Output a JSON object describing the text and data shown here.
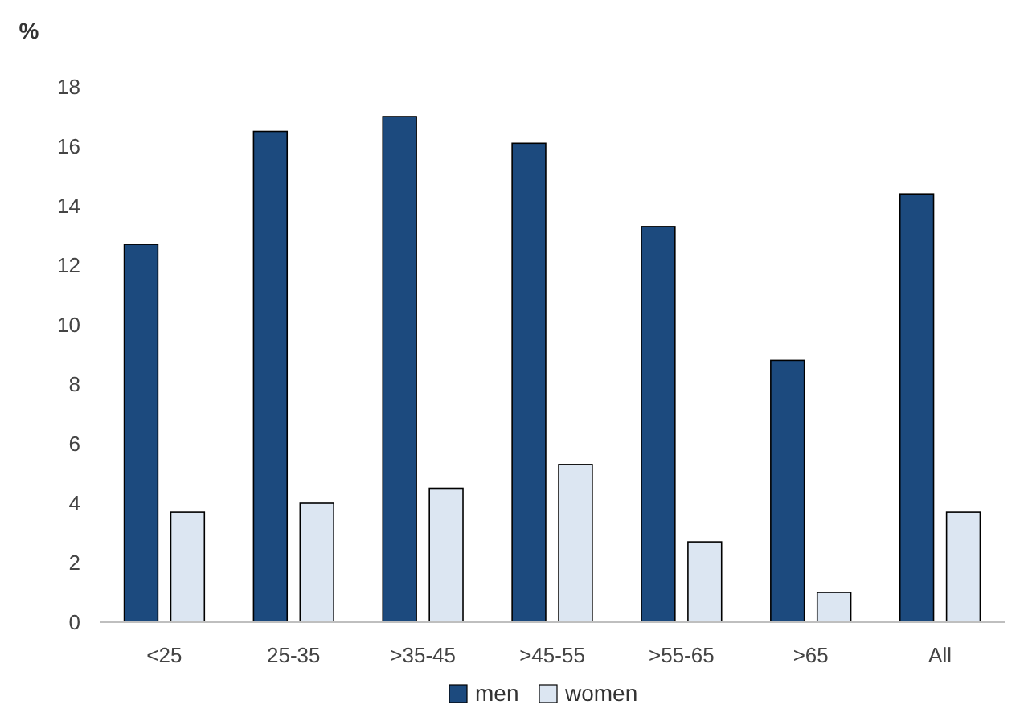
{
  "chart_data": {
    "type": "bar",
    "ylabel": "%",
    "categories": [
      "<25",
      "25-35",
      ">35-45",
      ">45-55",
      ">55-65",
      ">65",
      "All"
    ],
    "series": [
      {
        "name": "men",
        "color": "#1c4a7e",
        "values": [
          12.7,
          16.5,
          17.0,
          16.1,
          13.3,
          8.8,
          14.4
        ]
      },
      {
        "name": "women",
        "color": "#dce6f2",
        "values": [
          3.7,
          4.0,
          4.5,
          5.3,
          2.7,
          1.0,
          3.7
        ]
      }
    ],
    "ylim": [
      0,
      18
    ],
    "yticks": [
      0,
      2,
      4,
      6,
      8,
      10,
      12,
      14,
      16,
      18
    ],
    "grid": false,
    "legend": "bottom"
  }
}
